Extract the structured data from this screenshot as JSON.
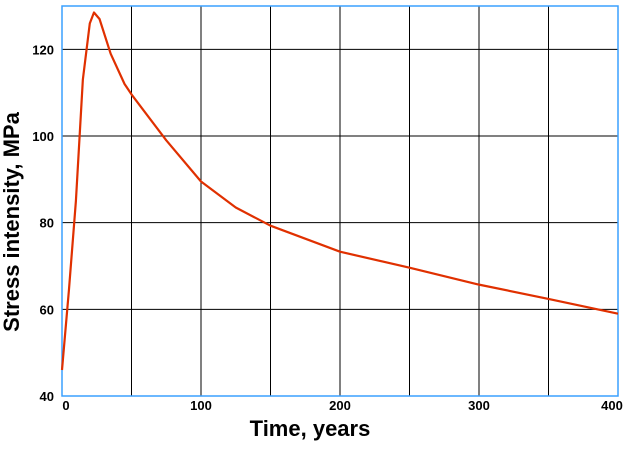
{
  "chart_data": {
    "type": "line",
    "x_label": "Time, years",
    "y_label": "Stress intensity, MPa",
    "x": [
      0,
      5,
      10,
      15,
      20,
      23,
      27,
      35,
      45,
      50,
      75,
      100,
      125,
      150,
      200,
      250,
      300,
      350,
      400
    ],
    "series": [
      {
        "color": "#e03000",
        "values": [
          46,
          64.5,
          85,
          113,
          126,
          128.5,
          127,
          119,
          112,
          109.6,
          99,
          89.5,
          83.5,
          79.3,
          73.3,
          69.6,
          65.7,
          62.4,
          59
        ]
      }
    ],
    "xlim": [
      0,
      400
    ],
    "ylim": [
      40,
      130
    ],
    "xticks": [
      0,
      100,
      200,
      300,
      400
    ],
    "yticks": [
      40,
      60,
      80,
      100,
      120
    ],
    "x_minor_grid": [
      50,
      150,
      250,
      350
    ],
    "grid": true,
    "frame_color": "#3aa0ff"
  }
}
